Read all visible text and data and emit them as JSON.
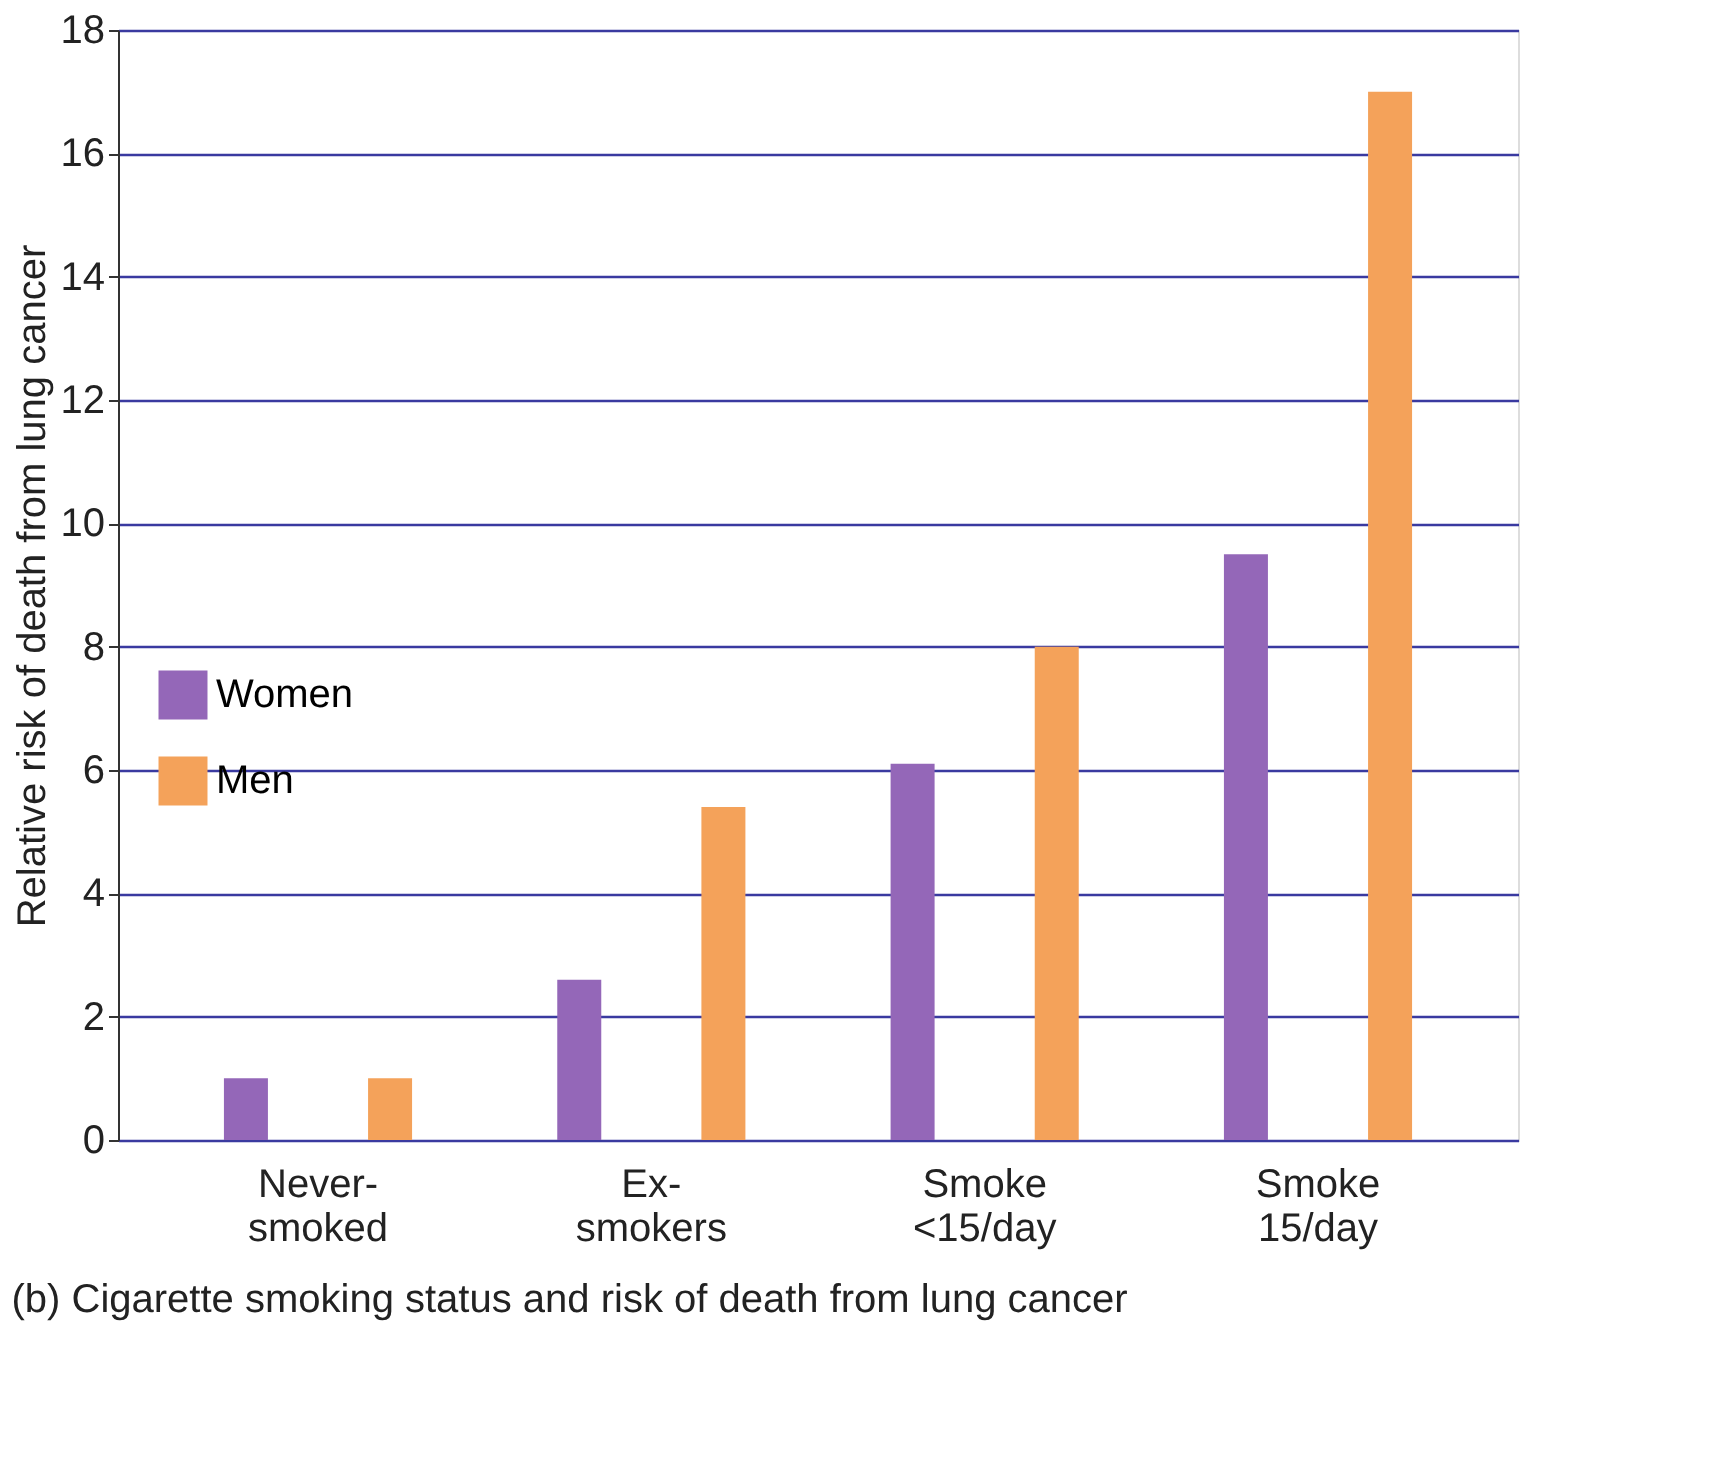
{
  "chart_data": {
    "type": "bar",
    "title": "(b)    Cigarette smoking status and risk of death from lung cancer",
    "ylabel": "Relative risk of death from lung cancer",
    "categories": [
      "Never-\nsmoked",
      "Ex-\nsmokers",
      "Smoke\n<15/day",
      "Smoke\n15/day"
    ],
    "series": [
      {
        "name": "Women",
        "color": "#9467b8",
        "values": [
          1.0,
          2.6,
          6.1,
          9.5
        ]
      },
      {
        "name": "Men",
        "color": "#f4a25a",
        "values": [
          1.0,
          5.4,
          8.0,
          17.0
        ]
      }
    ],
    "ylim": [
      0,
      18
    ],
    "yticks": [
      0,
      2,
      4,
      6,
      8,
      10,
      12,
      14,
      16,
      18
    ],
    "grid": "y",
    "legend": "left"
  }
}
